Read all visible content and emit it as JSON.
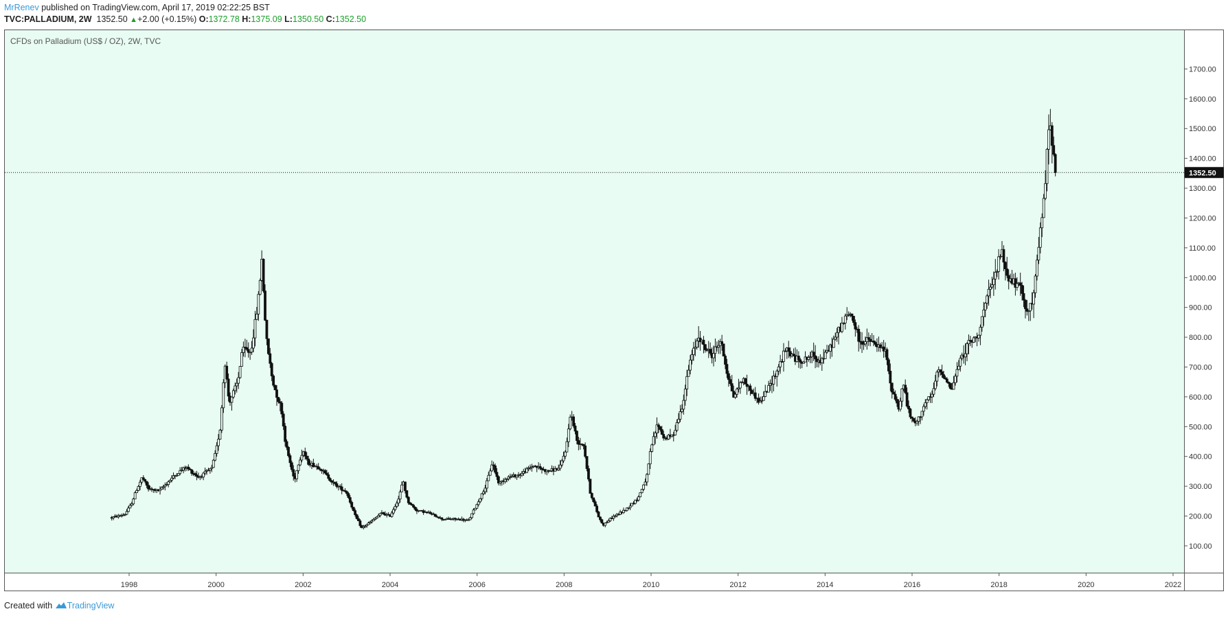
{
  "header": {
    "author": "MrRenev",
    "published_text": " published on TradingView.com, April 17, 2019 02:22:25 BST"
  },
  "symbol_line": {
    "symbol": "TVC:PALLADIUM, 2W",
    "price": "1352.50",
    "change": "+2.00 (+0.15%)",
    "o_label": "O:",
    "o_value": "1372.78",
    "h_label": "H:",
    "h_value": "1375.09",
    "l_label": "L:",
    "l_value": "1350.50",
    "c_label": "C:",
    "c_value": "1352.50"
  },
  "footer": {
    "created_with": "Created with",
    "brand": "TradingView"
  },
  "colors": {
    "plot_bg": "#e8fcf3",
    "candle": "#111111",
    "up_text": "#1a9e2a",
    "brand_blue": "#3a9ad9"
  },
  "chart_data": {
    "type": "candlestick",
    "title": "CFDs on Palladium (US$ / OZ), 2W, TVC",
    "xlabel": "",
    "ylabel": "",
    "x_range": [
      1996.1,
      2022.5
    ],
    "ylim": [
      10,
      1830
    ],
    "y_ticks": [
      "100.00",
      "200.00",
      "300.00",
      "400.00",
      "500.00",
      "600.00",
      "700.00",
      "800.00",
      "900.00",
      "1000.00",
      "1100.00",
      "1200.00",
      "1300.00",
      "1400.00",
      "1500.00",
      "1600.00",
      "1700.00"
    ],
    "x_ticks": [
      "1998",
      "2000",
      "2002",
      "2004",
      "2006",
      "2008",
      "2010",
      "2012",
      "2014",
      "2016",
      "2018",
      "2020",
      "2022"
    ],
    "last_price": 1352.5,
    "last_price_label": "1352.50",
    "grid": false,
    "series_path": [
      [
        1997.6,
        195
      ],
      [
        1997.9,
        205
      ],
      [
        1998.05,
        240
      ],
      [
        1998.15,
        280
      ],
      [
        1998.3,
        330
      ],
      [
        1998.45,
        290
      ],
      [
        1998.7,
        285
      ],
      [
        1999.0,
        330
      ],
      [
        1999.3,
        365
      ],
      [
        1999.6,
        330
      ],
      [
        1999.9,
        360
      ],
      [
        2000.0,
        420
      ],
      [
        2000.1,
        500
      ],
      [
        2000.2,
        720
      ],
      [
        2000.3,
        580
      ],
      [
        2000.5,
        650
      ],
      [
        2000.6,
        760
      ],
      [
        2000.8,
        750
      ],
      [
        2000.95,
        900
      ],
      [
        2001.05,
        1060
      ],
      [
        2001.15,
        800
      ],
      [
        2001.3,
        650
      ],
      [
        2001.5,
        560
      ],
      [
        2001.6,
        440
      ],
      [
        2001.8,
        320
      ],
      [
        2001.9,
        380
      ],
      [
        2002.0,
        420
      ],
      [
        2002.1,
        380
      ],
      [
        2002.4,
        360
      ],
      [
        2002.7,
        310
      ],
      [
        2003.0,
        280
      ],
      [
        2003.2,
        200
      ],
      [
        2003.35,
        160
      ],
      [
        2003.6,
        185
      ],
      [
        2003.8,
        210
      ],
      [
        2004.0,
        200
      ],
      [
        2004.2,
        260
      ],
      [
        2004.3,
        320
      ],
      [
        2004.4,
        250
      ],
      [
        2004.6,
        220
      ],
      [
        2004.9,
        210
      ],
      [
        2005.2,
        190
      ],
      [
        2005.5,
        190
      ],
      [
        2005.8,
        185
      ],
      [
        2006.0,
        240
      ],
      [
        2006.2,
        300
      ],
      [
        2006.35,
        380
      ],
      [
        2006.5,
        310
      ],
      [
        2006.7,
        330
      ],
      [
        2007.0,
        340
      ],
      [
        2007.3,
        370
      ],
      [
        2007.6,
        350
      ],
      [
        2007.9,
        360
      ],
      [
        2008.05,
        430
      ],
      [
        2008.15,
        550
      ],
      [
        2008.3,
        450
      ],
      [
        2008.45,
        440
      ],
      [
        2008.6,
        280
      ],
      [
        2008.8,
        195
      ],
      [
        2008.9,
        170
      ],
      [
        2009.1,
        195
      ],
      [
        2009.4,
        220
      ],
      [
        2009.7,
        260
      ],
      [
        2009.9,
        330
      ],
      [
        2010.0,
        430
      ],
      [
        2010.15,
        510
      ],
      [
        2010.3,
        460
      ],
      [
        2010.5,
        470
      ],
      [
        2010.7,
        560
      ],
      [
        2010.9,
        720
      ],
      [
        2011.1,
        810
      ],
      [
        2011.2,
        770
      ],
      [
        2011.4,
        740
      ],
      [
        2011.6,
        790
      ],
      [
        2011.75,
        680
      ],
      [
        2011.9,
        600
      ],
      [
        2012.1,
        660
      ],
      [
        2012.3,
        620
      ],
      [
        2012.5,
        580
      ],
      [
        2012.7,
        630
      ],
      [
        2012.9,
        690
      ],
      [
        2013.1,
        760
      ],
      [
        2013.3,
        730
      ],
      [
        2013.5,
        720
      ],
      [
        2013.7,
        740
      ],
      [
        2013.9,
        720
      ],
      [
        2014.1,
        760
      ],
      [
        2014.3,
        820
      ],
      [
        2014.5,
        870
      ],
      [
        2014.6,
        880
      ],
      [
        2014.8,
        780
      ],
      [
        2015.0,
        790
      ],
      [
        2015.2,
        770
      ],
      [
        2015.4,
        750
      ],
      [
        2015.5,
        640
      ],
      [
        2015.7,
        560
      ],
      [
        2015.8,
        650
      ],
      [
        2015.9,
        560
      ],
      [
        2016.0,
        520
      ],
      [
        2016.1,
        510
      ],
      [
        2016.3,
        580
      ],
      [
        2016.45,
        600
      ],
      [
        2016.6,
        690
      ],
      [
        2016.8,
        660
      ],
      [
        2016.9,
        620
      ],
      [
        2017.1,
        720
      ],
      [
        2017.3,
        780
      ],
      [
        2017.5,
        800
      ],
      [
        2017.7,
        920
      ],
      [
        2017.9,
        1000
      ],
      [
        2018.05,
        1090
      ],
      [
        2018.2,
        1000
      ],
      [
        2018.35,
        980
      ],
      [
        2018.5,
        960
      ],
      [
        2018.6,
        900
      ],
      [
        2018.75,
        900
      ],
      [
        2018.9,
        1080
      ],
      [
        2019.05,
        1300
      ],
      [
        2019.15,
        1520
      ],
      [
        2019.25,
        1440
      ],
      [
        2019.3,
        1352.5
      ]
    ]
  }
}
